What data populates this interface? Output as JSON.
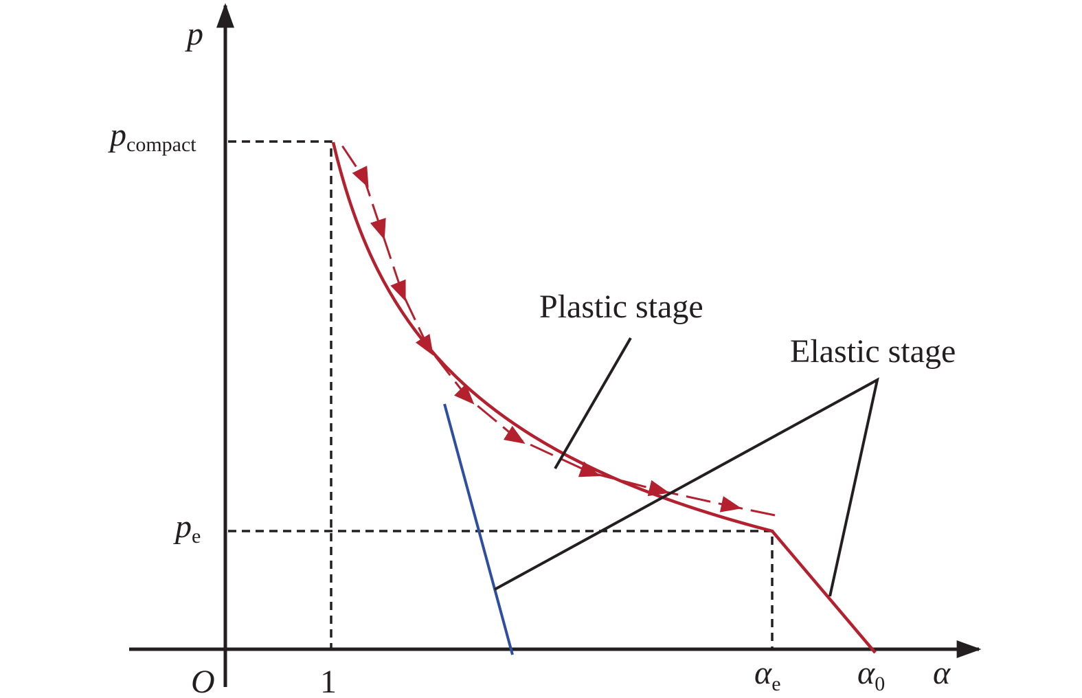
{
  "axes": {
    "y_label": "p",
    "x_label": "α",
    "origin": "O"
  },
  "y_ticks": [
    {
      "symbol": "p",
      "subscript": "compact"
    },
    {
      "symbol": "p",
      "subscript": "e"
    }
  ],
  "x_ticks": [
    {
      "label": "1"
    },
    {
      "symbol": "α",
      "subscript": "e"
    },
    {
      "symbol": "α",
      "subscript": "0"
    }
  ],
  "annotations": [
    "Plastic stage",
    "Elastic stage"
  ]
}
